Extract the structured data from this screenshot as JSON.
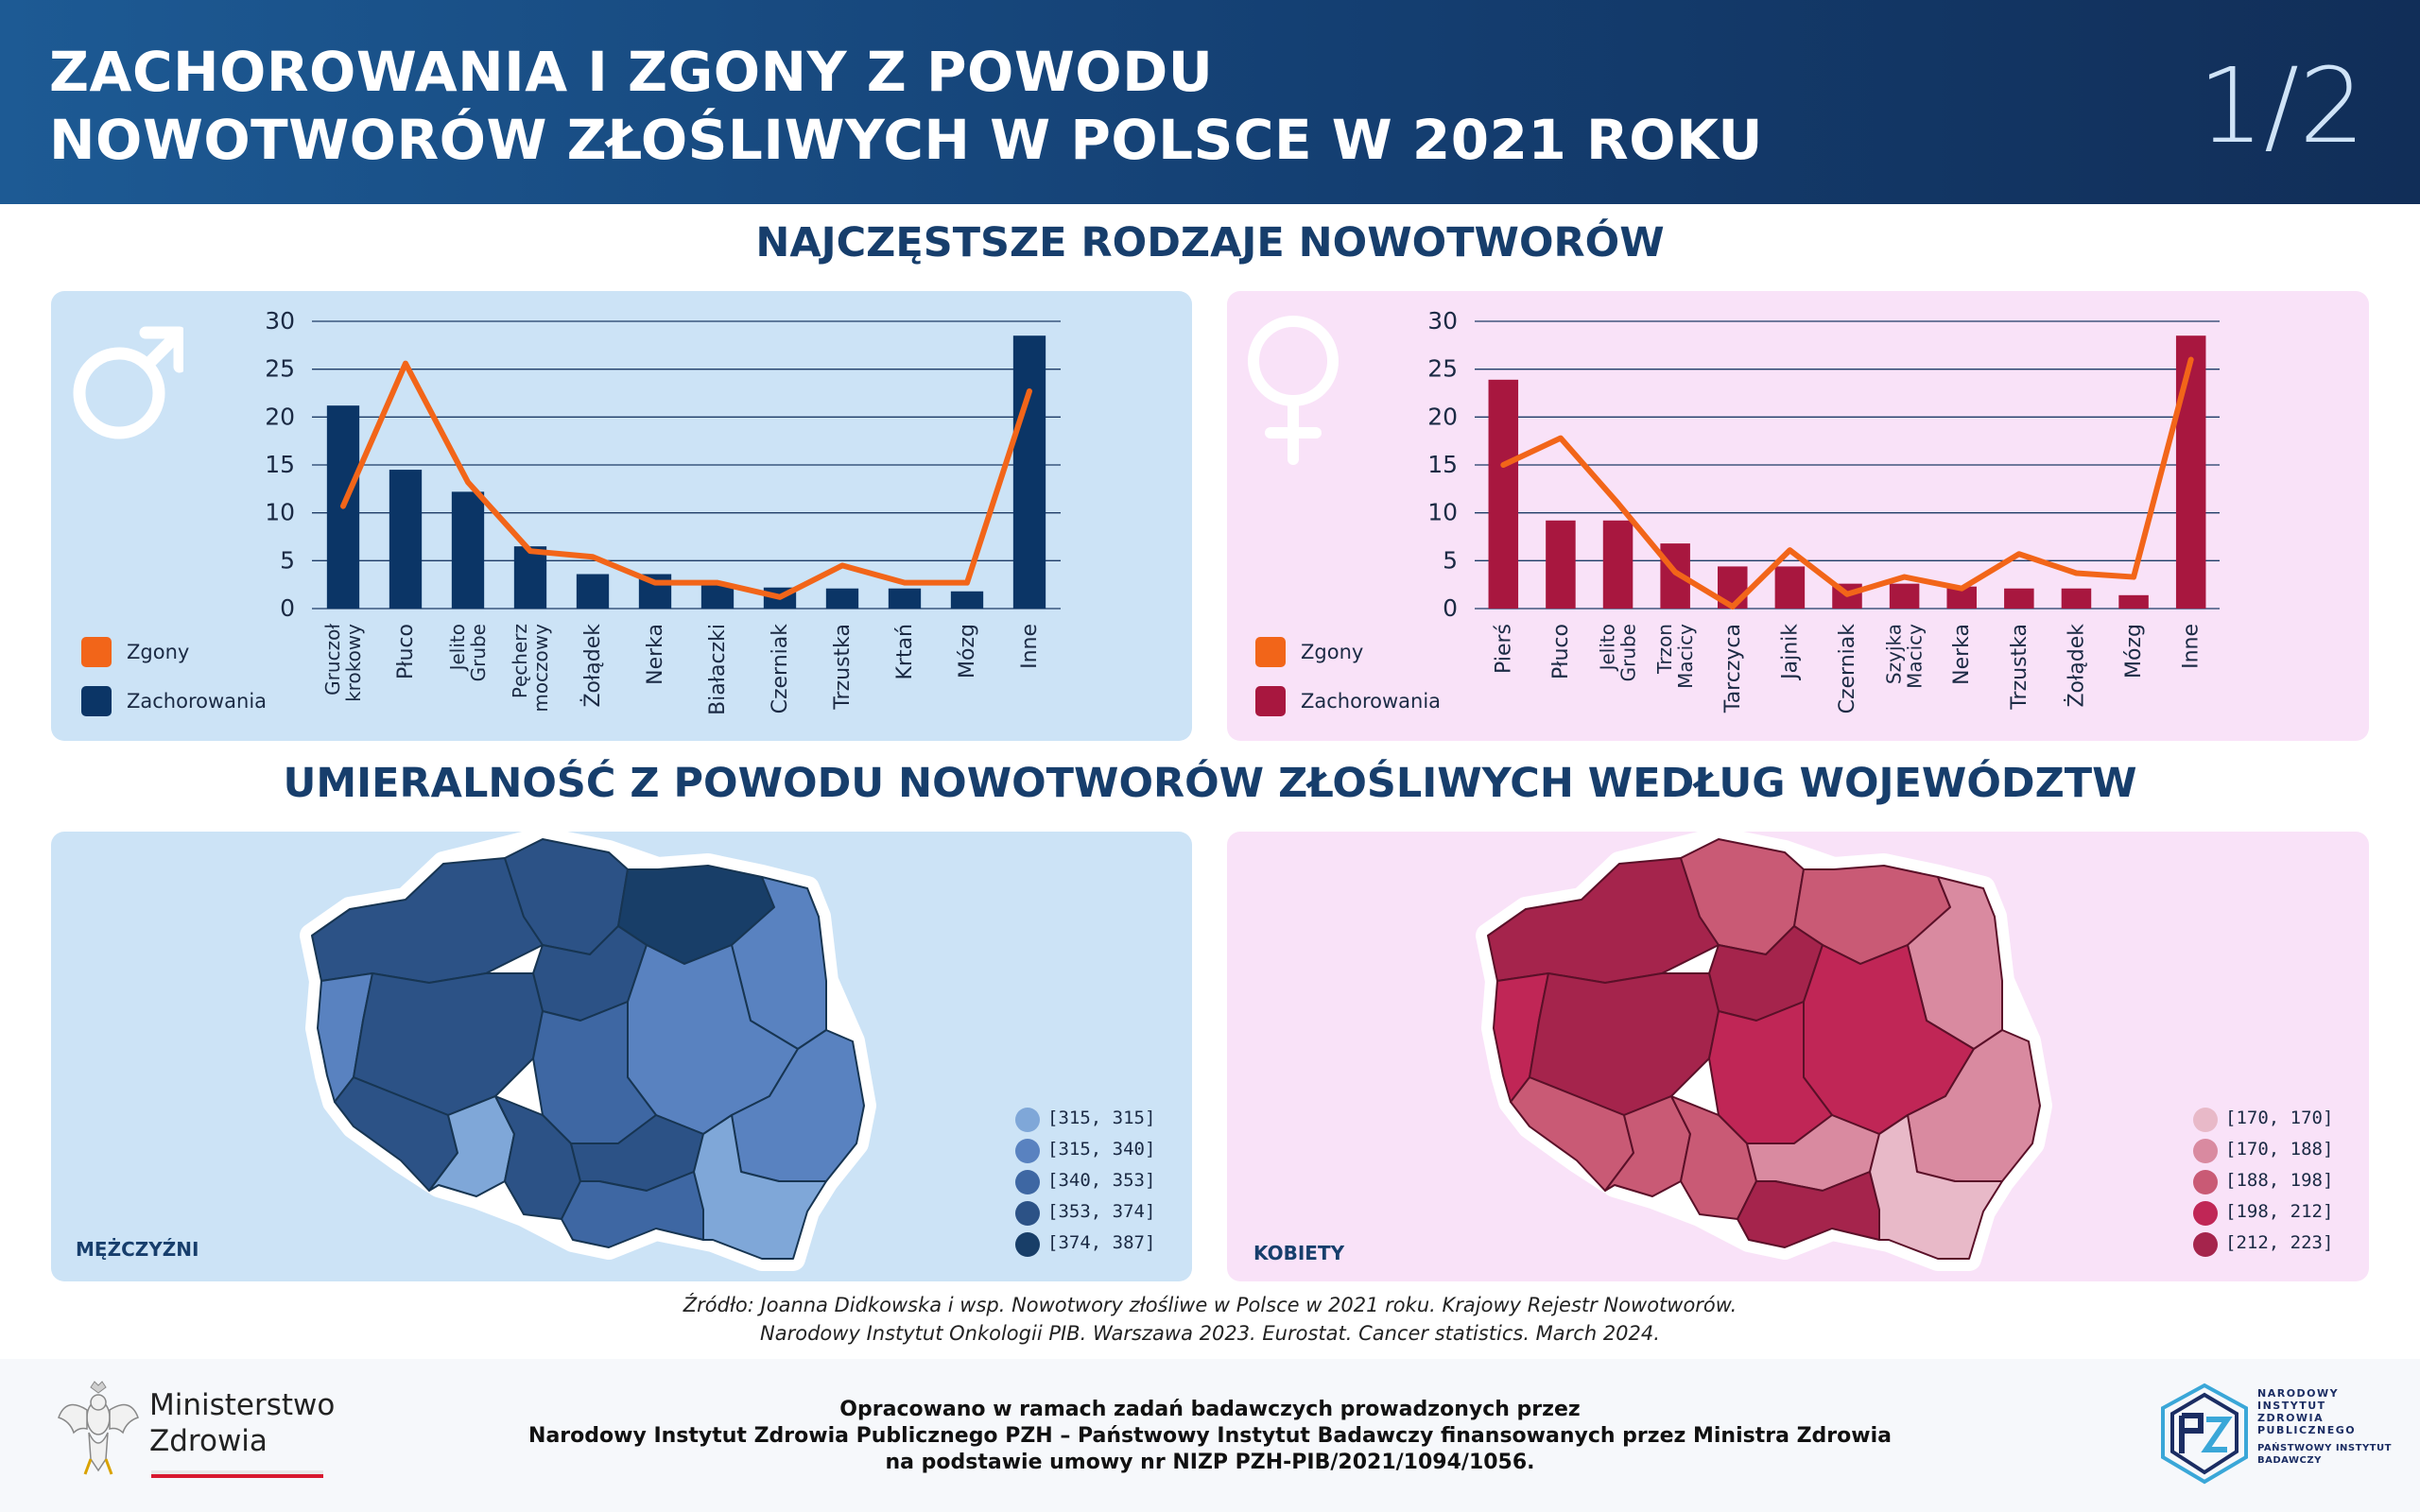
{
  "header": {
    "title_line1": "ZACHOROWANIA I ZGONY Z POWODU",
    "title_line2": "NOWOTWORÓW ZŁOŚLIWYCH W POLSCE W 2021 ROKU",
    "page": "1/2"
  },
  "section1_title": "NAJCZĘSTSZE RODZAJE NOWOTWORÓW",
  "section2_title": "UMIERALNOŚĆ Z POWODU NOWOTWORÓW ZŁOŚLIWYCH WEDŁUG WOJEWÓDZTW",
  "chart_data": [
    {
      "type": "bar",
      "panel": "men",
      "categories": [
        "Gruczoł krokowy",
        "Płuco",
        "Jelito Grube",
        "Pęcherz moczowy",
        "Żołądek",
        "Nerka",
        "Białaczki",
        "Czerniak",
        "Trzustka",
        "Krtań",
        "Mózg",
        "Inne"
      ],
      "series": [
        {
          "name": "Zachorowania",
          "kind": "bar",
          "color": "#0b3566",
          "values": [
            21.2,
            14.5,
            12.2,
            6.5,
            3.6,
            3.6,
            2.5,
            2.2,
            2.1,
            2.1,
            1.8,
            28.5
          ]
        },
        {
          "name": "Zgony",
          "kind": "line",
          "color": "#f26519",
          "values": [
            10.7,
            25.6,
            13.2,
            6.0,
            5.4,
            2.7,
            2.7,
            1.2,
            4.5,
            2.7,
            2.7,
            22.7
          ]
        }
      ],
      "ylim": [
        0,
        30
      ],
      "yticks": [
        0,
        5,
        10,
        15,
        20,
        25,
        30
      ],
      "legend": [
        "Zgony",
        "Zachorowania"
      ]
    },
    {
      "type": "bar",
      "panel": "women",
      "categories": [
        "Pierś",
        "Płuco",
        "Jelito Grube",
        "Trzon Macicy",
        "Tarczyca",
        "Jajnik",
        "Czerniak",
        "Szyjka Macicy",
        "Nerka",
        "Trzustka",
        "Żołądek",
        "Mózg",
        "Inne"
      ],
      "series": [
        {
          "name": "Zachorowania",
          "kind": "bar",
          "color": "#a8173f",
          "values": [
            23.9,
            9.2,
            9.2,
            6.8,
            4.4,
            4.4,
            2.6,
            2.6,
            2.3,
            2.1,
            2.1,
            1.4,
            28.5
          ]
        },
        {
          "name": "Zgony",
          "kind": "line",
          "color": "#f26519",
          "values": [
            15.0,
            17.8,
            11.0,
            3.8,
            0.2,
            6.1,
            1.5,
            3.3,
            2.1,
            5.7,
            3.7,
            3.3,
            26.0
          ]
        }
      ],
      "ylim": [
        0,
        30
      ],
      "yticks": [
        0,
        5,
        10,
        15,
        20,
        25,
        30
      ],
      "legend": [
        "Zgony",
        "Zachorowania"
      ]
    }
  ],
  "men_panel": {
    "legend_deaths": "Zgony",
    "legend_cases": "Zachorowania",
    "map_label": "MĘŻCZYŹNI",
    "bins": [
      {
        "label": "[315, 315]",
        "color": "#7fa7d8"
      },
      {
        "label": "[315, 340]",
        "color": "#5982c0"
      },
      {
        "label": "[340, 353]",
        "color": "#3e67a3"
      },
      {
        "label": "[353, 374]",
        "color": "#2c5286"
      },
      {
        "label": "[374, 387]",
        "color": "#183e68"
      }
    ]
  },
  "women_panel": {
    "legend_deaths": "Zgony",
    "legend_cases": "Zachorowania",
    "map_label": "KOBIETY",
    "bins": [
      {
        "label": "[170, 170]",
        "color": "#e8b9c8"
      },
      {
        "label": "[170, 188]",
        "color": "#d98aa0"
      },
      {
        "label": "[188, 198]",
        "color": "#c95a75"
      },
      {
        "label": "[198, 212]",
        "color": "#c02656"
      },
      {
        "label": "[212, 223]",
        "color": "#a5244c"
      }
    ]
  },
  "source_line1": "Źródło: Joanna Didkowska i wsp. Nowotwory złośliwe w Polsce w 2021 roku. Krajowy Rejestr Nowotworów.",
  "source_line2": "Narodowy Instytut Onkologii PIB. Warszawa 2023. Eurostat. Cancer statistics. March 2024.",
  "footer": {
    "credit_line1": "Opracowano w ramach zadań badawczych prowadzonych przez",
    "credit_line2": "Narodowy Instytut Zdrowia Publicznego PZH – Państwowy Instytut Badawczy finansowanych przez Ministra Zdrowia",
    "credit_line3": "na podstawie umowy nr NIZP PZH-PIB/2021/1094/1056.",
    "ministry_line1": "Ministerstwo",
    "ministry_line2": "Zdrowia",
    "pzh_line1": "NARODOWY",
    "pzh_line2": "INSTYTUT",
    "pzh_line3": "ZDROWIA",
    "pzh_line4": "PUBLICZNEGO",
    "pzh_line5": "PAŃSTWOWY INSTYTUT",
    "pzh_line6": "BADAWCZY"
  }
}
